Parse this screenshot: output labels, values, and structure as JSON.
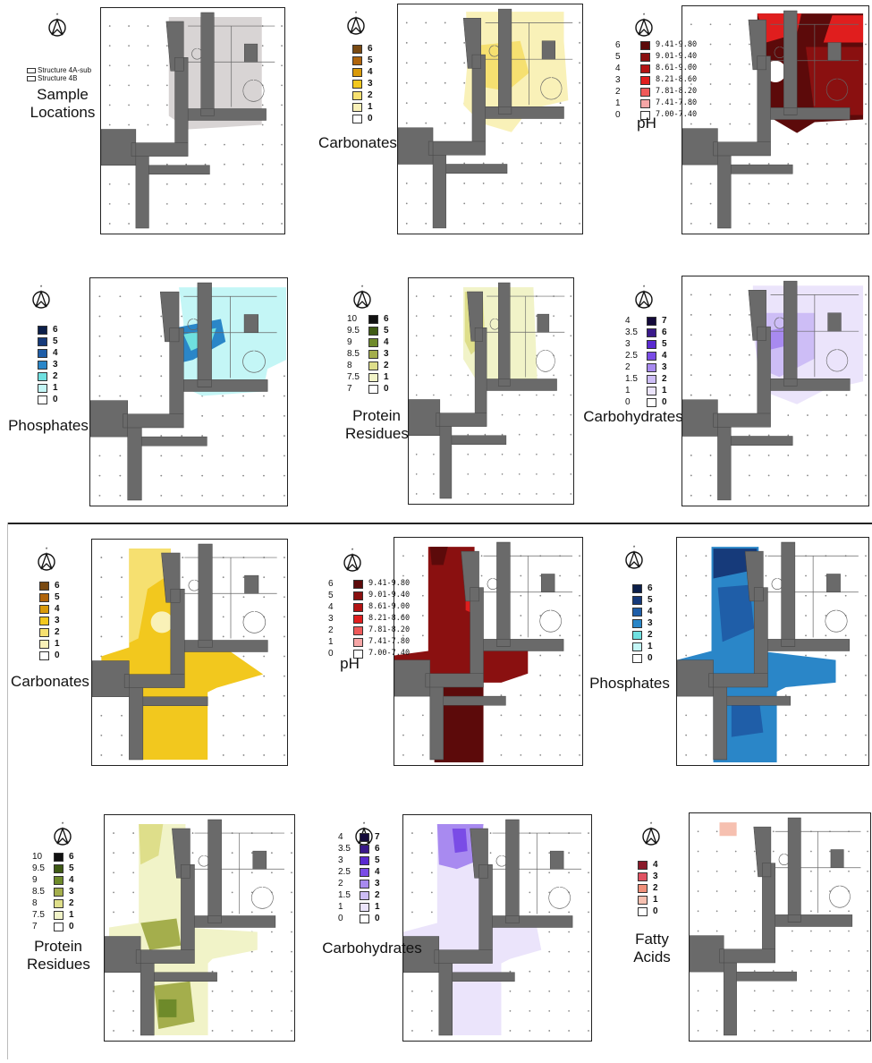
{
  "panels": [
    {
      "id": "sample-locations",
      "title": [
        "Sample",
        "Locations"
      ],
      "structure_legend": [
        "Structure 4A-sub",
        "Structure 4B"
      ],
      "legend": null,
      "palette": "gray"
    },
    {
      "id": "carbonates-top",
      "title": [
        "Carbonates"
      ],
      "legend": {
        "left": [],
        "nums": [
          "6",
          "5",
          "4",
          "3",
          "2",
          "1",
          "0"
        ],
        "ranges": []
      },
      "palette": "yellow"
    },
    {
      "id": "ph-top",
      "title": [
        "pH"
      ],
      "legend": {
        "left": [
          "6",
          "5",
          "4",
          "3",
          "2",
          "1",
          "0"
        ],
        "nums": [],
        "ranges": [
          "9.41-9.80",
          "9.01-9.40",
          "8.61-9.00",
          "8.21-8.60",
          "7.81-8.20",
          "7.41-7.80",
          "7.00-7.40"
        ]
      },
      "palette": "red"
    },
    {
      "id": "phosphates-top",
      "title": [
        "Phosphates"
      ],
      "legend": {
        "left": [],
        "nums": [
          "6",
          "5",
          "4",
          "3",
          "2",
          "1",
          "0"
        ],
        "ranges": []
      },
      "palette": "cyan"
    },
    {
      "id": "protein-top",
      "title": [
        "Protein",
        "Residues"
      ],
      "legend": {
        "left": [
          "10",
          "9.5",
          "9",
          "8.5",
          "8",
          "7.5",
          "7"
        ],
        "nums": [
          "6",
          "5",
          "4",
          "3",
          "2",
          "1",
          "0"
        ],
        "ranges": []
      },
      "palette": "olive"
    },
    {
      "id": "carbohydrates-top",
      "title": [
        "Carbohydrates"
      ],
      "legend": {
        "left": [
          "4",
          "3.5",
          "3",
          "2.5",
          "2",
          "1.5",
          "1",
          "0"
        ],
        "nums": [
          "7",
          "6",
          "5",
          "4",
          "3",
          "2",
          "1",
          "0"
        ],
        "ranges": []
      },
      "palette": "purple"
    },
    {
      "id": "carbonates-bottom",
      "title": [
        "Carbonates"
      ],
      "legend": {
        "left": [],
        "nums": [
          "6",
          "5",
          "4",
          "3",
          "2",
          "1",
          "0"
        ],
        "ranges": []
      },
      "palette": "yellow"
    },
    {
      "id": "ph-bottom",
      "title": [
        "pH"
      ],
      "legend": {
        "left": [
          "6",
          "5",
          "4",
          "3",
          "2",
          "1",
          "0"
        ],
        "nums": [],
        "ranges": [
          "9.41-9.80",
          "9.01-9.40",
          "8.61-9.00",
          "8.21-8.60",
          "7.81-8.20",
          "7.41-7.80",
          "7.00-7.40"
        ]
      },
      "palette": "red"
    },
    {
      "id": "phosphates-bottom",
      "title": [
        "Phosphates"
      ],
      "legend": {
        "left": [],
        "nums": [
          "6",
          "5",
          "4",
          "3",
          "2",
          "1",
          "0"
        ],
        "ranges": []
      },
      "palette": "blue"
    },
    {
      "id": "protein-bottom",
      "title": [
        "Protein",
        "Residues"
      ],
      "legend": {
        "left": [
          "10",
          "9.5",
          "9",
          "8.5",
          "8",
          "7.5",
          "7"
        ],
        "nums": [
          "6",
          "5",
          "4",
          "3",
          "2",
          "1",
          "0"
        ],
        "ranges": []
      },
      "palette": "olive"
    },
    {
      "id": "carbohydrates-bottom",
      "title": [
        "Carbohydrates"
      ],
      "legend": {
        "left": [
          "4",
          "3.5",
          "3",
          "2.5",
          "2",
          "1.5",
          "1",
          "0"
        ],
        "nums": [
          "7",
          "6",
          "5",
          "4",
          "3",
          "2",
          "1",
          "0"
        ],
        "ranges": []
      },
      "palette": "purple"
    },
    {
      "id": "fatty-acids",
      "title": [
        "Fatty",
        "Acids"
      ],
      "legend": {
        "left": [],
        "nums": [
          "4",
          "3",
          "2",
          "1",
          "0"
        ],
        "ranges": []
      },
      "palette": "fatty"
    }
  ],
  "palettes": {
    "yellow": [
      "#7a4a12",
      "#b0650c",
      "#d99a0a",
      "#f2c81e",
      "#f6e070",
      "#f9f1b8",
      "#ffffff"
    ],
    "red": [
      "#5c0a0a",
      "#8a1010",
      "#b31414",
      "#e01e1e",
      "#ef5a5a",
      "#f6a6a6",
      "#ffffff"
    ],
    "cyan": [
      "#0c1f4a",
      "#163a7a",
      "#1f5ea8",
      "#2a86c8",
      "#6fe0e0",
      "#c4f6f6",
      "#ffffff"
    ],
    "blue": [
      "#0c1f4a",
      "#163a7a",
      "#1f5ea8",
      "#2a86c8",
      "#6fe0e0",
      "#c4f6f6",
      "#ffffff"
    ],
    "olive": [
      "#111111",
      "#3f5a14",
      "#6e8a2a",
      "#a4ae4c",
      "#dede8a",
      "#f1f3c8",
      "#ffffff"
    ],
    "purple": [
      "#140a3a",
      "#3a1a8a",
      "#5a2ad0",
      "#7a4ce6",
      "#a88af0",
      "#cdbdf6",
      "#ebe4fb",
      "#ffffff"
    ],
    "fatty": [
      "#8a1a2a",
      "#e05262",
      "#f0907a",
      "#f6c0b0",
      "#ffffff"
    ],
    "gray": [
      "#d8d4d4"
    ],
    "structure": "#6a6a6a"
  }
}
